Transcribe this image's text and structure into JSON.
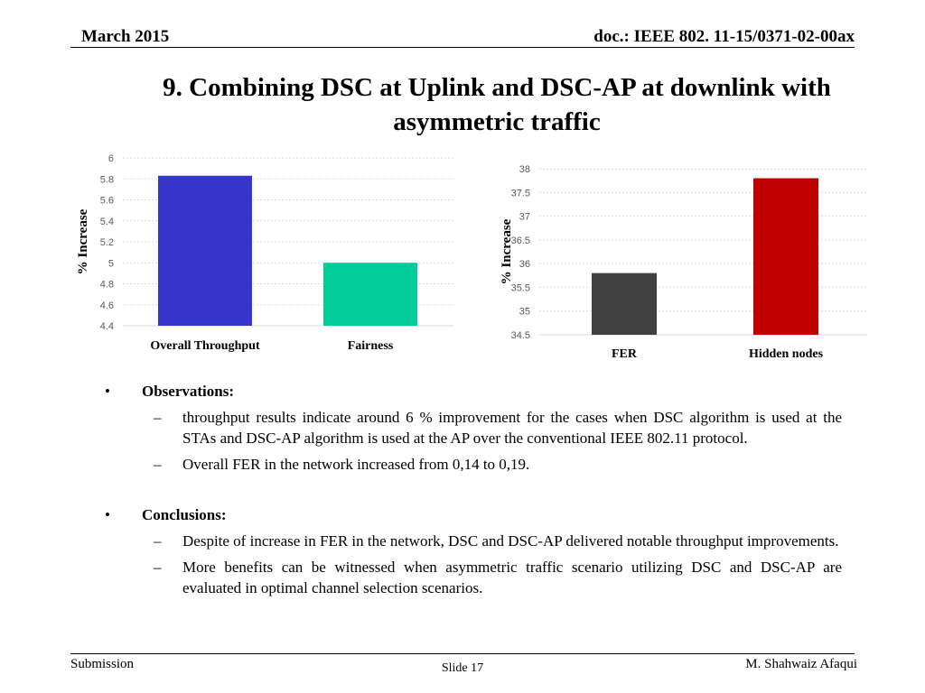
{
  "header": {
    "date": "March 2015",
    "doc": "doc.: IEEE 802. 11-15/0371-02-00ax"
  },
  "title": "9. Combining DSC at Uplink and DSC-AP at downlink with asymmetric traffic",
  "chart_data": [
    {
      "type": "bar",
      "categories": [
        "Overall Throughput",
        "Fairness"
      ],
      "values": [
        5.83,
        5.0
      ],
      "colors": [
        "#3535cc",
        "#00cc99"
      ],
      "ylabel": "% Increase",
      "ylim": [
        4.4,
        6
      ],
      "yticks": [
        "4.4",
        "4.6",
        "4.8",
        "5",
        "5.2",
        "5.4",
        "5.6",
        "5.8",
        "6"
      ],
      "grid": true
    },
    {
      "type": "bar",
      "categories": [
        "FER",
        "Hidden nodes"
      ],
      "values": [
        35.8,
        37.8
      ],
      "colors": [
        "#404040",
        "#c00000"
      ],
      "ylabel": "% Increase",
      "ylim": [
        34.5,
        38
      ],
      "yticks": [
        "34.5",
        "35",
        "35.5",
        "36",
        "36.5",
        "37",
        "37.5",
        "38"
      ],
      "grid": true
    }
  ],
  "observations": {
    "heading": "Observations:",
    "items": [
      "throughput results indicate around 6 % improvement for the cases when DSC algorithm is used at the STAs and DSC-AP algorithm is used at the AP over the conventional IEEE 802.11 protocol.",
      "Overall FER in the network increased from 0,14 to 0,19."
    ]
  },
  "conclusions": {
    "heading": "Conclusions:",
    "items": [
      "Despite of increase in FER in the network, DSC and DSC-AP delivered notable throughput improvements.",
      "More benefits can be witnessed when asymmetric traffic scenario utilizing DSC and DSC-AP are evaluated in optimal channel selection scenarios."
    ]
  },
  "footer": {
    "left": "Submission",
    "slide": "Slide 17",
    "author": "M. Shahwaiz Afaqui"
  },
  "bullet": "•",
  "dash": "–"
}
